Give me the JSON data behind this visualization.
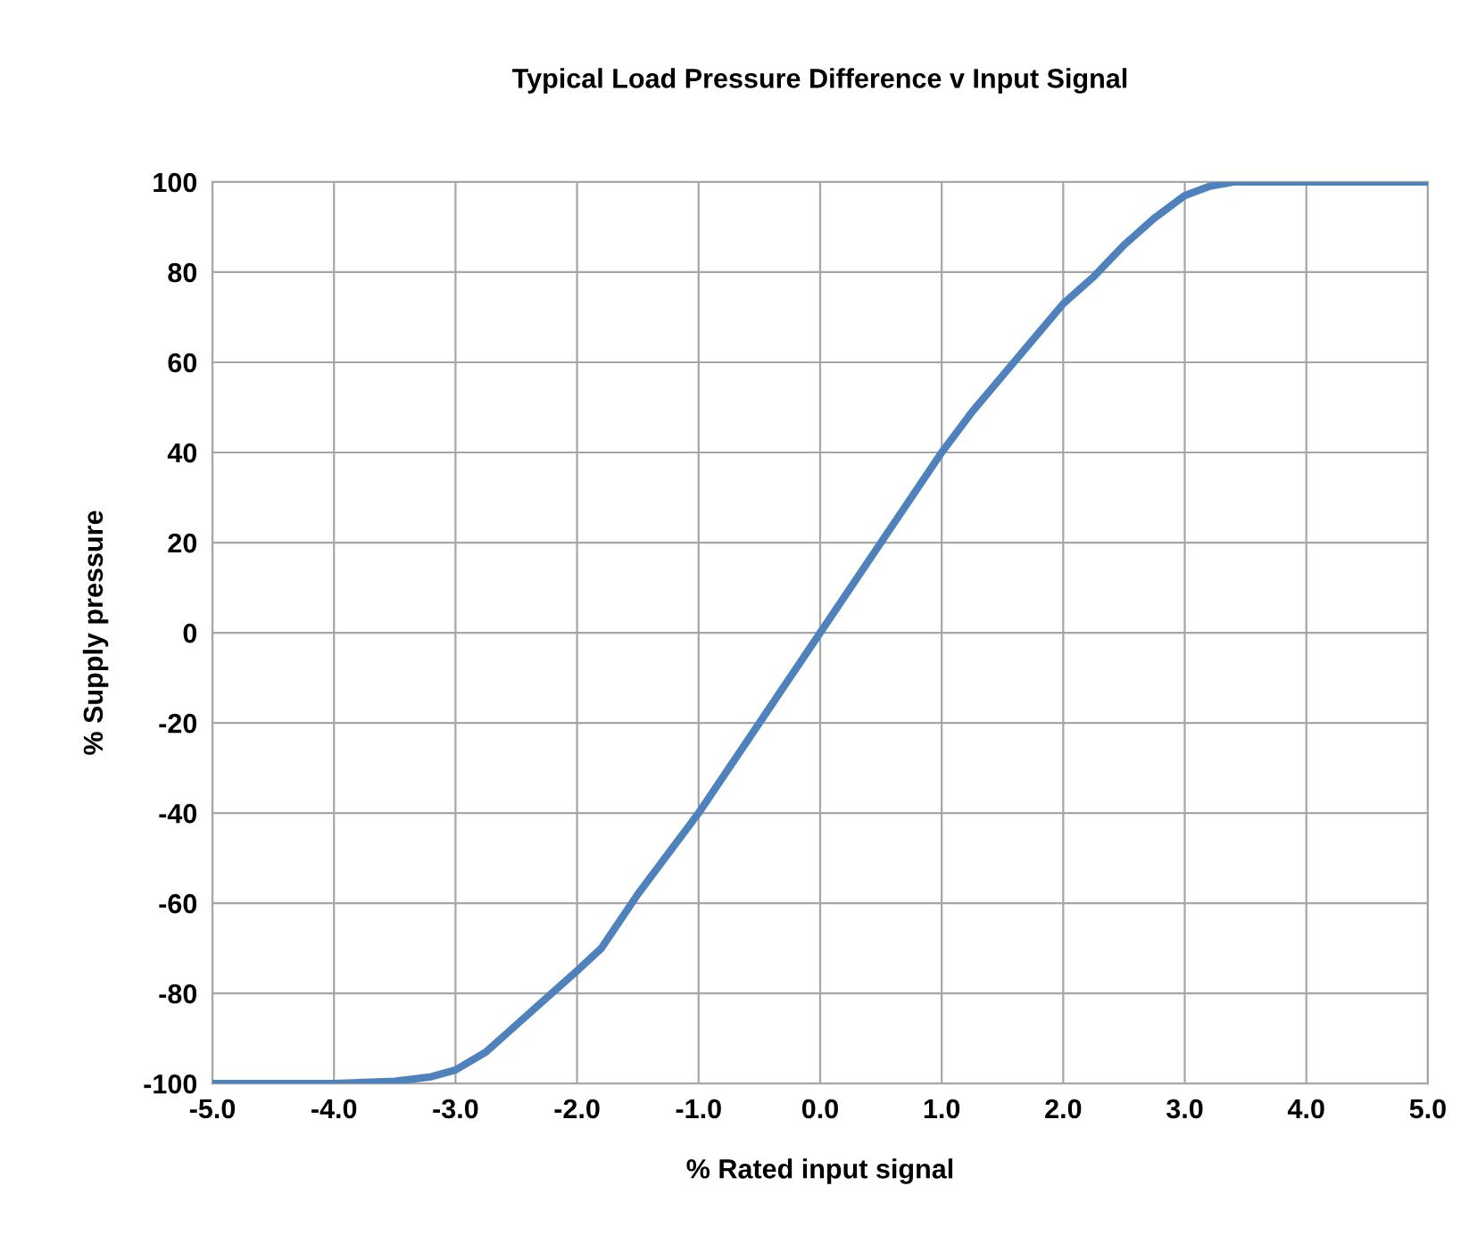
{
  "chart_data": {
    "type": "line",
    "title": "Typical Load Pressure Difference v Input Signal",
    "xlabel": "% Rated input signal",
    "ylabel": "% Supply pressure",
    "series": [
      {
        "color": "#4f81bd",
        "x": [
          -5.0,
          -4.5,
          -4.0,
          -3.5,
          -3.2,
          -3.0,
          -2.75,
          -2.5,
          -2.25,
          -2.0,
          -1.8,
          -1.7,
          -1.5,
          -1.25,
          -1.0,
          -0.5,
          0.0,
          0.5,
          1.0,
          1.25,
          1.5,
          1.75,
          2.0,
          2.25,
          2.5,
          2.75,
          3.0,
          3.2,
          3.4,
          3.7,
          4.0,
          4.5,
          5.0
        ],
        "values": [
          -100,
          -100,
          -100,
          -99.5,
          -98.5,
          -97,
          -93,
          -87,
          -81,
          -75,
          -70,
          -66,
          -58,
          -49,
          -40,
          -20,
          0,
          20,
          40,
          49,
          57,
          65,
          73,
          79,
          86,
          92,
          97,
          99,
          100,
          100,
          100,
          100,
          100
        ]
      }
    ],
    "xlim": [
      -5.0,
      5.0
    ],
    "xticks": [
      {
        "value": -5,
        "label": "-5.0"
      },
      {
        "value": -4,
        "label": "-4.0"
      },
      {
        "value": -3,
        "label": "-3.0"
      },
      {
        "value": -2,
        "label": "-2.0"
      },
      {
        "value": -1,
        "label": "-1.0"
      },
      {
        "value": 0,
        "label": "0.0"
      },
      {
        "value": 1,
        "label": "1.0"
      },
      {
        "value": 2,
        "label": "2.0"
      },
      {
        "value": 3,
        "label": "3.0"
      },
      {
        "value": 4,
        "label": "4.0"
      },
      {
        "value": 5,
        "label": "5.0"
      }
    ],
    "ylim": [
      -100,
      100
    ],
    "yticks": [
      -100,
      -80,
      -60,
      -40,
      -20,
      0,
      20,
      40,
      60,
      80,
      100
    ],
    "grid": true,
    "legend": false,
    "marker": "none",
    "line_style": "solid"
  }
}
